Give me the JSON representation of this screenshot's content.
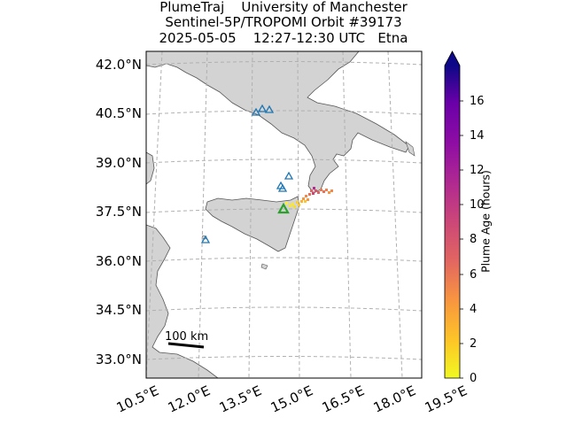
{
  "title": {
    "line1": "PlumeTraj    University of Manchester",
    "line2": "Sentinel-5P/TROPOMI Orbit #39173",
    "line3": "2025-05-05    12:27-12:30 UTC   Etna"
  },
  "map": {
    "lat_labels": [
      "42.0°N",
      "40.5°N",
      "39.0°N",
      "37.5°N",
      "36.0°N",
      "34.5°N",
      "33.0°N"
    ],
    "lon_labels": [
      "10.5°E",
      "12.0°E",
      "13.5°E",
      "15.0°E",
      "16.5°E",
      "18.0°E",
      "19.5°E"
    ],
    "scale_bar_label": "100 km",
    "land_color": "#d3d3d3",
    "sea_color": "#ffffff",
    "volcano_marker_color": "#1f77b4",
    "source_marker_color": "#2ca02c"
  },
  "colorbar": {
    "label": "Plume Age (hours)",
    "ticks": [
      "0",
      "2",
      "4",
      "6",
      "8",
      "10",
      "12",
      "14",
      "16"
    ],
    "range": [
      0,
      18
    ],
    "colormap": "plasma_r",
    "extend": "max"
  }
}
